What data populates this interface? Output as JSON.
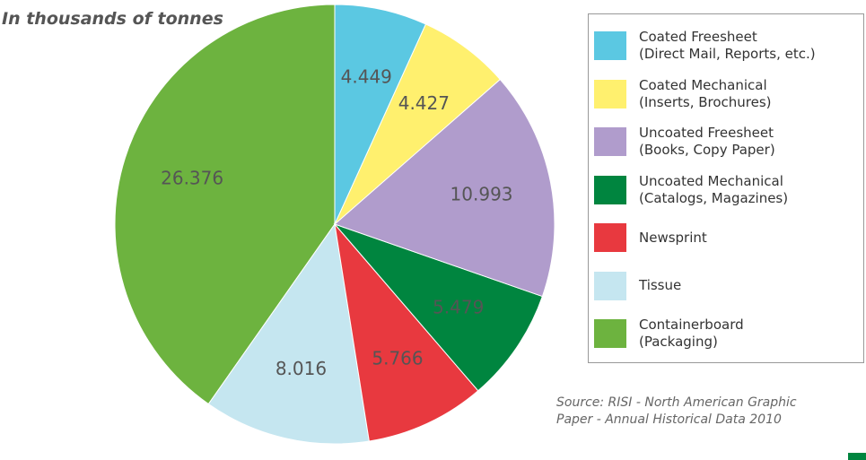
{
  "chart_data": {
    "type": "pie",
    "subtitle": "In thousands of tonnes",
    "source": "Source: RISI  - North American Graphic Paper - Annual Historical Data 2010",
    "categories": [
      "Containerboard (Packaging)",
      "Tissue",
      "Newsprint",
      "Uncoated Mechanical (Catalogs, Magazines)",
      "Uncoated Freesheet (Books, Copy Paper)",
      "Coated Mechanical (Inserts, Brochures)",
      "Coated Freesheet (Direct Mail, Reports, etc.)"
    ],
    "values": [
      26.376,
      8.016,
      5.766,
      5.479,
      10.993,
      4.427,
      4.449
    ],
    "colors": [
      "#6db33f",
      "#c5e6f0",
      "#e8393f",
      "#00853f",
      "#b09ccc",
      "#fff06e",
      "#5bc8e2"
    ],
    "legend": "right"
  }
}
